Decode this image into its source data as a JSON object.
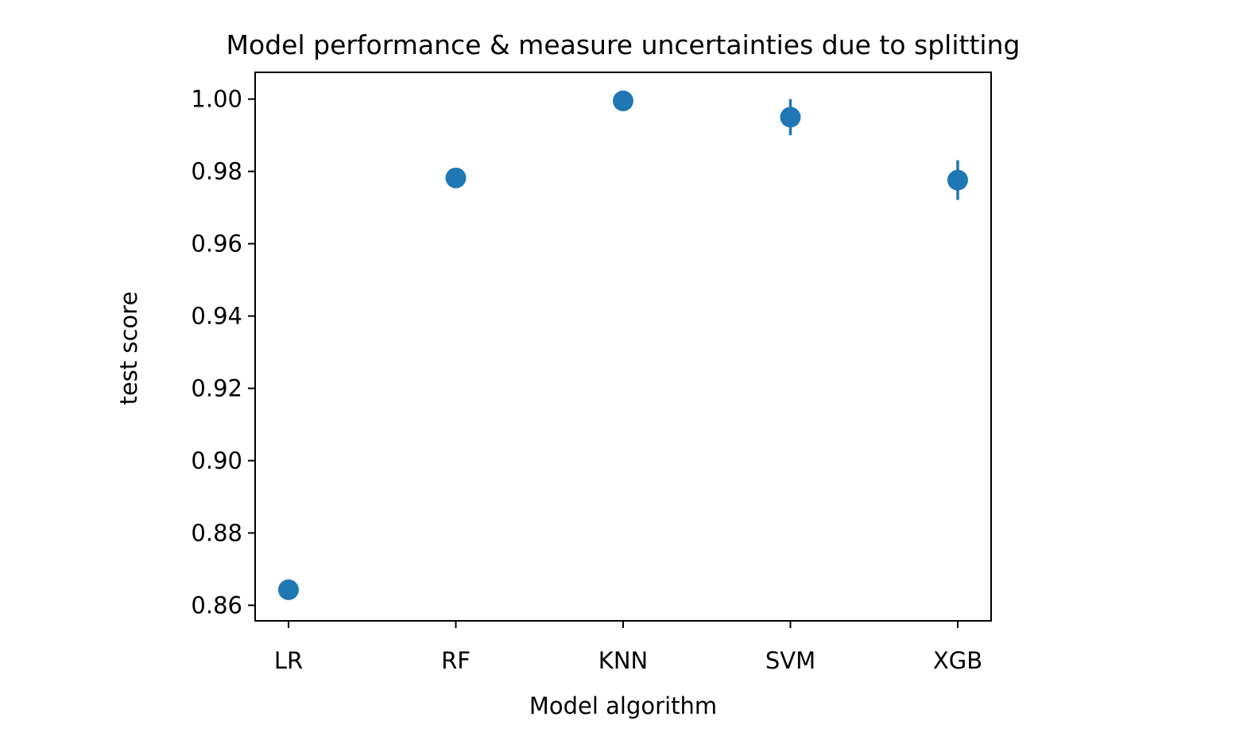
{
  "chart_data": {
    "type": "scatter",
    "title": "Model performance & measure uncertainties due to splitting",
    "xlabel": "Model algorithm",
    "ylabel": "test score",
    "categories": [
      "LR",
      "RF",
      "KNN",
      "SVM",
      "XGB"
    ],
    "series": [
      {
        "values": [
          0.8643,
          0.9782,
          0.9995,
          0.995,
          0.9776
        ],
        "errors": [
          0.0,
          0.0,
          0.0,
          0.005,
          0.0055
        ]
      }
    ],
    "ylim": [
      0.8557,
      1.0074
    ],
    "yticks": [
      0.86,
      0.88,
      0.9,
      0.92,
      0.94,
      0.96,
      0.98,
      1.0
    ],
    "ytick_labels": [
      "0.86",
      "0.88",
      "0.90",
      "0.92",
      "0.94",
      "0.96",
      "0.98",
      "1.00"
    ],
    "grid": false,
    "legend": "none",
    "colors": {
      "marker": "#1f77b4",
      "axis": "#000000",
      "background": "#ffffff"
    }
  }
}
